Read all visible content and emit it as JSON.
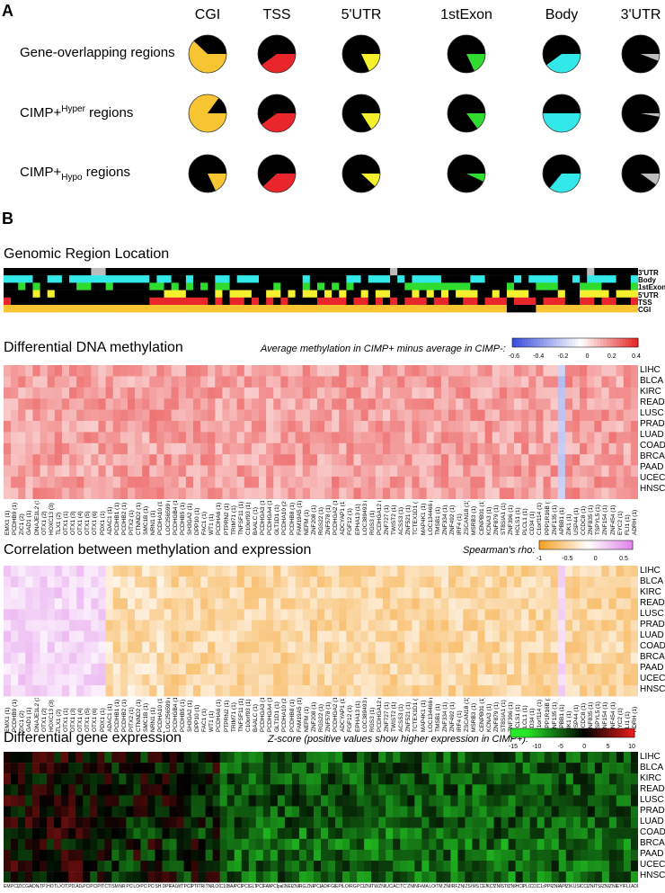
{
  "panelA": {
    "letter": "A",
    "columns": [
      "CGI",
      "TSS",
      "5'UTR",
      "1stExon",
      "Body",
      "3'UTR"
    ],
    "rows": [
      {
        "label": "Gene-overlapping regions",
        "label_main": "Gene-overlapping regions",
        "sup": "",
        "sub": "",
        "fractions": [
          0.62,
          0.4,
          0.18,
          0.18,
          0.4,
          0.06
        ]
      },
      {
        "label": "CIMP+Hyper regions",
        "label_main": "CIMP+",
        "sup": "Hyper",
        "sub": "",
        "fractions": [
          0.85,
          0.4,
          0.16,
          0.15,
          0.5,
          0.03
        ]
      },
      {
        "label": "CIMP+Hypo regions",
        "label_main": "CIMP+",
        "sup": "",
        "sub": "Hypo",
        "fractions": [
          0.18,
          0.38,
          0.12,
          0.07,
          0.36,
          0.1
        ]
      }
    ],
    "colors": {
      "CGI": "#f7c531",
      "TSS": "#e8262b",
      "5'UTR": "#f5f02e",
      "1stExon": "#2fdc2f",
      "Body": "#33e8e8",
      "3'UTR": "#bdbdbd",
      "background": "#000000"
    }
  },
  "panelB": {
    "letter": "B",
    "region_title": "Genomic Region Location",
    "region_rows": [
      "3'UTR",
      "Body",
      "1stExon",
      "5'UTR",
      "TSS",
      "CGI"
    ],
    "dna_title": "Differential DNA methylation",
    "dna_legend_title": "Average methylation in CIMP+ minus average in CIMP-:",
    "dna_legend_ticks": [
      "-0.6",
      "-0.4",
      "-0.2",
      "0",
      "0.2",
      "0.4"
    ],
    "corr_title": "Correlation between methylation and expression",
    "corr_legend_title": "Spearman's rho:",
    "corr_legend_ticks": [
      "-1",
      "-0.5",
      "0",
      "0.5"
    ],
    "expr_title": "Differential gene expression",
    "expr_legend_title": "Z-score (positive values show higher expression in CIMP+):",
    "expr_legend_ticks": [
      "-15",
      "-10",
      "-5",
      "0",
      "5",
      "10"
    ],
    "cancers": [
      "LIHC",
      "BLCA",
      "KIRC",
      "READ",
      "LUSC",
      "PRAD",
      "LUAD",
      "COAD",
      "BRCA",
      "PAAD",
      "UCEC",
      "HNSC"
    ],
    "genes_probe": [
      "EMX1 (1)",
      "PCDHB9 (1)",
      "ZIC1 (2)",
      "GAD1 (1)",
      "DNAJE1L2 (1)",
      "OTX1 (2)",
      "HOXC13 (3)",
      "TLX1 (2)",
      "OTX1 (1)",
      "OTX1 (3)",
      "OTX1 (4)",
      "OTX1 (5)",
      "OTX1 (6)",
      "PDX1 (1)",
      "ADAC1 (1)",
      "PCDHB1 (1)",
      "PCDHB2 (1)",
      "PITX2 (1)",
      "CTNND2 (1)",
      "SMC1B (1)",
      "NRN1 (1)",
      "PCDHA10 (1)",
      "LOC256599 (1)",
      "PCDHGB4 (1)",
      "PCDHB5 (1)",
      "SH3GA2 (1)",
      "DPP10 (1)",
      "FAC1 (1)",
      "WT1 (1)",
      "PCDHA6 (1)",
      "PTPRN2 (1)",
      "TRIM71 (1)",
      "TNFSF11 (1)",
      "C10orf93 (1)",
      "BAALC (1)",
      "PCDHGA3 (1)",
      "PCDHGA4 (1)",
      "GLT1D1 (1)",
      "PCDHA10 (2)",
      "PCDHB8 (1)",
      "FAM19A5 (1)",
      "NEFM (1)",
      "ZNF208 (1)",
      "RGS22 (1)",
      "ZNF578 (1)",
      "PCDHGA2 (1)",
      "ADCYAP1 (1)",
      "FGF12 (1)",
      "EPHA13 (1)",
      "LOC389493 (1)",
      "RGS3 (1)",
      "PCDHGA12 (1)",
      "ZNF727 (1)",
      "TWIST2 (1)",
      "ACSS3 (1)",
      "ZNF521 (1)",
      "TCTEX1D1 (1)",
      "MAP4K1 (1)",
      "LOC134466 (1)",
      "TMSB1 (1)",
      "ZNF334 (1)",
      "ZNF492 (1)",
      "IRF4 (1)",
      "ZSCAN18 (1)",
      "MSRB3 (1)",
      "CENPB01 (1)",
      "KCNA3 (1)",
      "ZNF879 (1)",
      "ST8SIA1 (1)",
      "ZNF396 (1)",
      "HCLS1 (1)",
      "PLCL1 (1)",
      "CD34 (1)",
      "C1orf114 (1)",
      "PPP1R16B (1)",
      "ZNF135 (1)",
      "APBB1 (1)",
      "ZIK1 (1)",
      "USP44 (1)",
      "CCDC8 (1)",
      "ZNF835 (1)",
      "TSPYL5 (1)",
      "ZNF154 (1)",
      "ZNF454 (1)",
      "EYC2 (1)",
      "FLI1 (1)",
      "ADRH (1)"
    ],
    "genes_expr": [
      "EMX1",
      "PCDHB9",
      "ZIC1",
      "GAD1",
      "DNAJE1L2",
      "TP73",
      "HOXC13",
      "TLX1",
      "OTX1",
      "PDX1",
      "ADAC1",
      "PCDHGB1",
      "PCDHB2",
      "PITX2",
      "CTNND2",
      "SMC1B",
      "NRN1",
      "PCDHA10",
      "LOC256599",
      "PCDHGB4",
      "PCDHB5",
      "SH3GA2",
      "DPP10",
      "FAC1",
      "WT1",
      "PCDHA6",
      "PTPRN2",
      "TRIM71",
      "TNFSF11",
      "LOC339167",
      "C10orf93",
      "BAALC",
      "PCDHGA3",
      "PCDHGA4",
      "GLT1D1",
      "PCDHA10",
      "FAM19A5",
      "PCDHB8",
      "pal7PTEZ2",
      "NEFM",
      "ZNF208",
      "RGS22",
      "ZNF578",
      "PCDHGA2",
      "ADCYAP1",
      "FGF12",
      "EPHA13",
      "LOC389493",
      "RGS3",
      "PCDHGA12",
      "ZNF727",
      "TWIST2",
      "ZNF257",
      "UCHL1",
      "ACSS3",
      "TCTEX1D1",
      "ZNF521",
      "NFAM1",
      "MAP4K1",
      "LOC134466",
      "TMSB1",
      "ZNF334",
      "IRF4",
      "ZNF492",
      "ZSCAN18",
      "MSRB3",
      "CENPB01",
      "KCNA3",
      "ZNF879",
      "ST8SIA1",
      "ZNF396",
      "HCLS1",
      "PLCL1",
      "CD34",
      "C1orf114",
      "PPP1R16B",
      "ZNF135",
      "APBB1",
      "ZIK1",
      "USP44",
      "CCDC8",
      "ZNF835",
      "TSPYL5",
      "ZNF154",
      "ZNF454",
      "EYC2",
      "FLI1",
      "ADRH"
    ]
  }
}
